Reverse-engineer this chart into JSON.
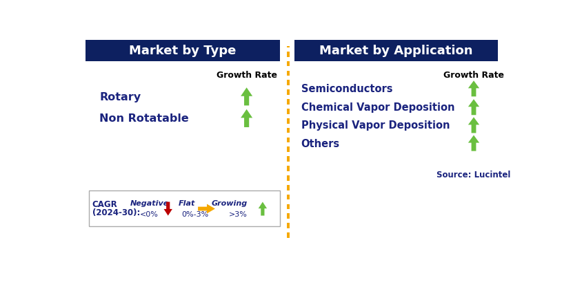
{
  "left_title": "Market by Type",
  "right_title": "Market by Application",
  "header_bg_color": "#0d2060",
  "header_text_color": "#ffffff",
  "label_text_color": "#1a237e",
  "growth_rate_label": "Growth Rate",
  "growth_rate_color": "#000000",
  "left_items": [
    "Rotary",
    "Non Rotatable"
  ],
  "right_items": [
    "Semiconductors",
    "Chemical Vapor Deposition",
    "Physical Vapor Deposition",
    "Others"
  ],
  "green_arrow_color": "#6abf40",
  "red_arrow_color": "#bb0000",
  "orange_arrow_color": "#f5a800",
  "divider_color": "#f5a800",
  "legend_cagr_line1": "CAGR",
  "legend_cagr_line2": "(2024-30):",
  "legend_negative_label": "Negative",
  "legend_negative_sub": "<0%",
  "legend_flat_label": "Flat",
  "legend_flat_sub": "0%-3%",
  "legend_growing_label": "Growing",
  "legend_growing_sub": ">3%",
  "source_text": "Source: Lucintel",
  "bg_color": "#ffffff",
  "legend_border_color": "#aaaaaa",
  "legend_bg_color": "#ffffff"
}
